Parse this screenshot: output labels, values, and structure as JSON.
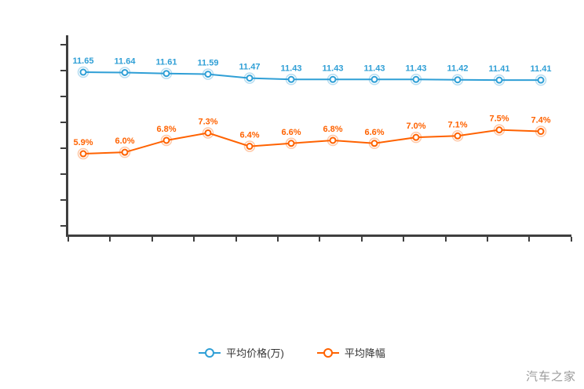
{
  "watermark": "汽车之家",
  "legend": {
    "items": [
      {
        "label": "平均价格(万)",
        "color": "#2f9fd6"
      },
      {
        "label": "平均降幅",
        "color": "#ff6200"
      }
    ]
  },
  "chart_data": {
    "type": "line",
    "title": "",
    "xlabel": "",
    "ylabel": "",
    "grid": false,
    "legend_position": "bottom",
    "x_axis": {
      "tick_count": 13,
      "labels_visible": false
    },
    "y_axis_left": {
      "min": 6.7,
      "max": 12.77,
      "tick_count": 8,
      "labels_visible": false
    },
    "y_axis_right": {
      "min": 0.43,
      "max": 13.85,
      "labels_visible": false
    },
    "series": [
      {
        "name": "平均价格(万)",
        "color": "#2f9fd6",
        "axis": "left",
        "values": [
          11.65,
          11.64,
          11.61,
          11.59,
          11.47,
          11.43,
          11.43,
          11.43,
          11.43,
          11.42,
          11.41,
          11.41
        ],
        "labels": [
          "11.65",
          "11.64",
          "11.61",
          "11.59",
          "11.47",
          "11.43",
          "11.43",
          "11.43",
          "11.43",
          "11.42",
          "11.41",
          "11.41"
        ]
      },
      {
        "name": "平均降幅",
        "color": "#ff6200",
        "axis": "right",
        "values": [
          5.9,
          6.0,
          6.8,
          7.3,
          6.4,
          6.6,
          6.8,
          6.6,
          7.0,
          7.1,
          7.5,
          7.4
        ],
        "labels": [
          "5.9%",
          "6.0%",
          "6.8%",
          "7.3%",
          "6.4%",
          "6.6%",
          "6.8%",
          "6.6%",
          "7.0%",
          "7.1%",
          "7.5%",
          "7.4%"
        ]
      }
    ]
  }
}
